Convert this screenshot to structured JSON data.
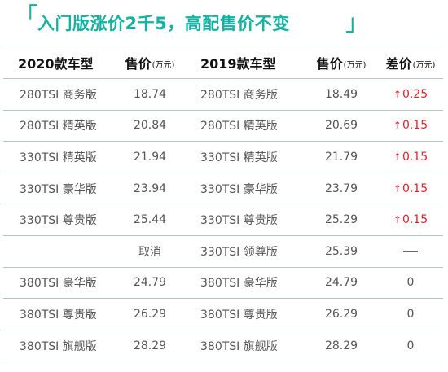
{
  "title": {
    "open_bracket": "「",
    "text": "入门版涨价2千5，高配售价不变",
    "close_bracket": "」"
  },
  "table": {
    "headers": {
      "model_2020": "2020款车型",
      "price_2020": "售价",
      "price_2020_unit": "(万元)",
      "model_2019": "2019款车型",
      "price_2019": "售价",
      "price_2019_unit": "(万元)",
      "diff": "差价",
      "diff_unit": "(万元)"
    },
    "rows": [
      {
        "model_2020": "280TSI 商务版",
        "price_2020": "18.74",
        "model_2019": "280TSI 商务版",
        "price_2019": "18.49",
        "diff": "0.25",
        "diff_type": "up"
      },
      {
        "model_2020": "280TSI 精英版",
        "price_2020": "20.84",
        "model_2019": "280TSI 精英版",
        "price_2019": "20.69",
        "diff": "0.15",
        "diff_type": "up"
      },
      {
        "model_2020": "330TSI 精英版",
        "price_2020": "21.94",
        "model_2019": "330TSI 精英版",
        "price_2019": "21.79",
        "diff": "0.15",
        "diff_type": "up"
      },
      {
        "model_2020": "330TSI 豪华版",
        "price_2020": "23.94",
        "model_2019": "330TSI 豪华版",
        "price_2019": "23.79",
        "diff": "0.15",
        "diff_type": "up"
      },
      {
        "model_2020": "330TSI 尊贵版",
        "price_2020": "25.44",
        "model_2019": "330TSI 尊贵版",
        "price_2019": "25.29",
        "diff": "0.15",
        "diff_type": "up"
      },
      {
        "model_2020": "",
        "price_2020": "取消",
        "model_2019": "330TSI 领尊版",
        "price_2019": "25.39",
        "diff": "",
        "diff_type": "dash"
      },
      {
        "model_2020": "380TSI 豪华版",
        "price_2020": "24.79",
        "model_2019": "380TSI 豪华版",
        "price_2019": "24.79",
        "diff": "0",
        "diff_type": "zero"
      },
      {
        "model_2020": "380TSI 尊贵版",
        "price_2020": "26.29",
        "model_2019": "380TSI 尊贵版",
        "price_2019": "26.29",
        "diff": "0",
        "diff_type": "zero"
      },
      {
        "model_2020": "380TSI 旗舰版",
        "price_2020": "28.29",
        "model_2019": "380TSI 旗舰版",
        "price_2019": "28.29",
        "diff": "0",
        "diff_type": "zero"
      }
    ]
  },
  "colors": {
    "accent": "#15b1a5",
    "increase": "#e0242b",
    "rule": "#b9c3cc"
  }
}
